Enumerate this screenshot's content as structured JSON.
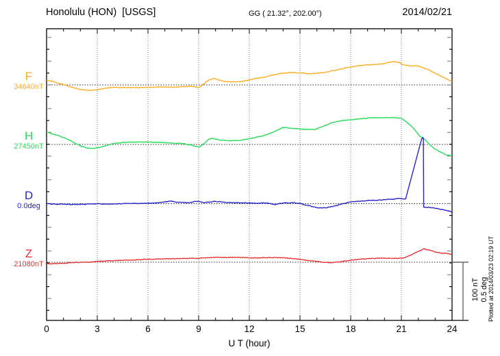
{
  "header": {
    "title": "Honolulu (HON)  [USGS]",
    "coordinates": "GG ( 21.32°, 202.00°)",
    "date": "2014/02/21"
  },
  "x_axis": {
    "label": "U T (hour)",
    "tick_labels": [
      "0",
      "3",
      "6",
      "9",
      "12",
      "15",
      "18",
      "21",
      "24"
    ],
    "minor_tick_hours": 1,
    "range_hours": [
      0,
      24
    ]
  },
  "scale_bar": {
    "labels": [
      "100 nT",
      "0.5 deg"
    ]
  },
  "footer_note": "Plotted at 2014/03/23 02:19 UT",
  "chart_data": {
    "type": "line",
    "title": "Honolulu (HON) [USGS] magnetogram for 2014/02/21",
    "xlabel": "U T (hour)",
    "x_range": [
      0,
      24
    ],
    "grid": "dotted vertical gridlines every 3 hours; dotted horizontal baseline per channel",
    "legend_position": "left margin channel labels",
    "y_scale": {
      "nT_per_division": 100,
      "deg_per_division": 0.5
    },
    "series": [
      {
        "name": "F",
        "baseline_label": "34640nT",
        "baseline_value": 34640,
        "unit": "nT",
        "color": "#ffaa1e",
        "points": [
          [
            0,
            8.1
          ],
          [
            0.3,
            6.5
          ],
          [
            0.6,
            3.5
          ],
          [
            1,
            0.6
          ],
          [
            1.5,
            -4.0
          ],
          [
            2,
            -7.5
          ],
          [
            2.4,
            -9.0
          ],
          [
            2.8,
            -8.7
          ],
          [
            3.2,
            -7.0
          ],
          [
            3.6,
            -5.2
          ],
          [
            4,
            -4.0
          ],
          [
            4.5,
            -4.3
          ],
          [
            5,
            -4.6
          ],
          [
            5.5,
            -4.6
          ],
          [
            6,
            -4.0
          ],
          [
            6.5,
            -3.5
          ],
          [
            7,
            -3.5
          ],
          [
            7.5,
            -4.0
          ],
          [
            8,
            -2.9
          ],
          [
            8.5,
            -2.3
          ],
          [
            9,
            -4.4
          ],
          [
            9.3,
            1.5
          ],
          [
            9.6,
            8.1
          ],
          [
            9.9,
            11.2
          ],
          [
            10.2,
            8.1
          ],
          [
            10.5,
            5.8
          ],
          [
            11,
            5.2
          ],
          [
            11.5,
            5.2
          ],
          [
            12,
            8.7
          ],
          [
            12.5,
            11.5
          ],
          [
            13,
            13.8
          ],
          [
            13.5,
            17.3
          ],
          [
            14,
            19.6
          ],
          [
            14.5,
            20.8
          ],
          [
            15,
            20.2
          ],
          [
            15.5,
            19.0
          ],
          [
            16,
            19.6
          ],
          [
            16.5,
            21.3
          ],
          [
            17,
            24.2
          ],
          [
            17.5,
            27.1
          ],
          [
            18,
            30.6
          ],
          [
            18.5,
            32.3
          ],
          [
            19,
            34.0
          ],
          [
            19.5,
            34.5
          ],
          [
            20,
            35.8
          ],
          [
            20.5,
            39.2
          ],
          [
            20.9,
            38.0
          ],
          [
            21.05,
            34.2
          ],
          [
            21.5,
            32.3
          ],
          [
            22,
            31.7
          ],
          [
            22.3,
            28.8
          ],
          [
            22.7,
            24.2
          ],
          [
            23,
            19.6
          ],
          [
            23.4,
            13.8
          ],
          [
            23.7,
            9.8
          ],
          [
            24,
            5.2
          ]
        ]
      },
      {
        "name": "H",
        "baseline_label": "27450nT",
        "baseline_value": 27450,
        "unit": "nT",
        "color": "#22dc55",
        "points": [
          [
            0,
            20.8
          ],
          [
            0.4,
            17.3
          ],
          [
            0.8,
            13.8
          ],
          [
            1.2,
            9.2
          ],
          [
            1.6,
            3.5
          ],
          [
            2,
            -2.3
          ],
          [
            2.4,
            -6.3
          ],
          [
            2.8,
            -6.9
          ],
          [
            3.2,
            -4.6
          ],
          [
            3.6,
            -1.2
          ],
          [
            4,
            1.7
          ],
          [
            4.5,
            3.5
          ],
          [
            5,
            4.0
          ],
          [
            5.5,
            4.0
          ],
          [
            6,
            4.0
          ],
          [
            6.5,
            3.5
          ],
          [
            7,
            2.9
          ],
          [
            7.5,
            2.3
          ],
          [
            8,
            1.7
          ],
          [
            8.5,
            -0.6
          ],
          [
            9,
            -4.6
          ],
          [
            9.3,
            1.2
          ],
          [
            9.6,
            8.9
          ],
          [
            9.8,
            10.7
          ],
          [
            10.2,
            7.5
          ],
          [
            10.5,
            6.9
          ],
          [
            11,
            6.3
          ],
          [
            11.5,
            6.9
          ],
          [
            12,
            9.8
          ],
          [
            12.5,
            12.7
          ],
          [
            13,
            16.1
          ],
          [
            13.5,
            22.0
          ],
          [
            14,
            28.8
          ],
          [
            14.5,
            27.2
          ],
          [
            15,
            26.1
          ],
          [
            15.4,
            25.4
          ],
          [
            15.8,
            25.0
          ],
          [
            16.2,
            28.8
          ],
          [
            16.6,
            33.4
          ],
          [
            17,
            37.5
          ],
          [
            17.5,
            40.4
          ],
          [
            18,
            41.5
          ],
          [
            18.5,
            43.2
          ],
          [
            19,
            44.6
          ],
          [
            19.5,
            45.0
          ],
          [
            20,
            44.8
          ],
          [
            20.5,
            45.3
          ],
          [
            21,
            44.2
          ],
          [
            21.3,
            38.0
          ],
          [
            21.7,
            28.0
          ],
          [
            22.1,
            13.5
          ],
          [
            22.4,
            8.1
          ],
          [
            22.7,
            -0.8
          ],
          [
            23,
            -8.1
          ],
          [
            23.3,
            -12.3
          ],
          [
            23.6,
            -17.3
          ],
          [
            24,
            -18.8
          ]
        ]
      },
      {
        "name": "D",
        "baseline_label": "0.0deg",
        "baseline_value": 0.0,
        "unit": "deg",
        "color": "#2323cc",
        "points": [
          [
            0,
            0.0
          ],
          [
            0.5,
            -0.004
          ],
          [
            1,
            -0.005
          ],
          [
            1.5,
            -0.007
          ],
          [
            2,
            -0.006
          ],
          [
            2.5,
            -0.003
          ],
          [
            3,
            0.0
          ],
          [
            3.5,
            -0.004
          ],
          [
            4,
            -0.003
          ],
          [
            4.5,
            0.0
          ],
          [
            5,
            0.001
          ],
          [
            5.5,
            0.002
          ],
          [
            6,
            0.004
          ],
          [
            6.5,
            0.008
          ],
          [
            7,
            0.016
          ],
          [
            7.4,
            0.022
          ],
          [
            7.8,
            0.012
          ],
          [
            8.3,
            0.01
          ],
          [
            8.9,
            0.019
          ],
          [
            9.4,
            0.01
          ],
          [
            9.9,
            0.02
          ],
          [
            10.4,
            0.013
          ],
          [
            11,
            0.009
          ],
          [
            11.5,
            0.007
          ],
          [
            12,
            0.006
          ],
          [
            12.5,
            0.004
          ],
          [
            13,
            0.006
          ],
          [
            13.5,
            -0.008
          ],
          [
            14,
            0.006
          ],
          [
            14.5,
            0.008
          ],
          [
            15,
            0.004
          ],
          [
            15.4,
            -0.013
          ],
          [
            16,
            -0.033
          ],
          [
            16.5,
            -0.036
          ],
          [
            17,
            -0.021
          ],
          [
            17.5,
            -0.001
          ],
          [
            18,
            0.013
          ],
          [
            18.5,
            0.021
          ],
          [
            19,
            0.027
          ],
          [
            19.5,
            0.028
          ],
          [
            20,
            0.035
          ],
          [
            20.5,
            0.038
          ],
          [
            21,
            0.044
          ],
          [
            21.25,
            0.04
          ],
          [
            22.2,
            0.545
          ],
          [
            22.27,
            0.559
          ],
          [
            22.3,
            0.545
          ],
          [
            22.32,
            -0.029
          ],
          [
            22.7,
            -0.033
          ],
          [
            23,
            -0.04
          ],
          [
            23.5,
            -0.052
          ],
          [
            24,
            -0.069
          ]
        ]
      },
      {
        "name": "Z",
        "baseline_label": "21080nT",
        "baseline_value": 21080,
        "unit": "nT",
        "color": "#e62e2e",
        "points": [
          [
            0,
            -2.7
          ],
          [
            0.5,
            -2.3
          ],
          [
            1,
            -1.9
          ],
          [
            1.5,
            -0.4
          ],
          [
            2,
            -0.4
          ],
          [
            2.5,
            0.0
          ],
          [
            3,
            1.2
          ],
          [
            3.5,
            2.3
          ],
          [
            4,
            2.7
          ],
          [
            4.5,
            3.1
          ],
          [
            5,
            3.5
          ],
          [
            5.5,
            4.3
          ],
          [
            6,
            5.0
          ],
          [
            6.5,
            5.4
          ],
          [
            7,
            5.8
          ],
          [
            7.5,
            6.0
          ],
          [
            8,
            6.1
          ],
          [
            8.5,
            6.3
          ],
          [
            9,
            6.5
          ],
          [
            9.5,
            7.7
          ],
          [
            10,
            8.1
          ],
          [
            10.5,
            7.7
          ],
          [
            11,
            8.1
          ],
          [
            11.5,
            7.7
          ],
          [
            12,
            7.3
          ],
          [
            12.5,
            7.5
          ],
          [
            13,
            7.3
          ],
          [
            13.5,
            8.1
          ],
          [
            14,
            7.3
          ],
          [
            14.5,
            6.5
          ],
          [
            15,
            5.0
          ],
          [
            15.5,
            3.1
          ],
          [
            16,
            1.2
          ],
          [
            16.5,
            -0.4
          ],
          [
            17,
            -0.4
          ],
          [
            17.5,
            1.2
          ],
          [
            18,
            3.5
          ],
          [
            18.5,
            5.0
          ],
          [
            19,
            6.1
          ],
          [
            19.5,
            6.6
          ],
          [
            20,
            6.9
          ],
          [
            20.5,
            6.6
          ],
          [
            21,
            6.9
          ],
          [
            21.3,
            8.9
          ],
          [
            21.7,
            13.8
          ],
          [
            22,
            18.0
          ],
          [
            22.35,
            22.7
          ],
          [
            22.6,
            20.8
          ],
          [
            23,
            16.9
          ],
          [
            23.5,
            15.0
          ],
          [
            24,
            13.5
          ]
        ]
      }
    ]
  }
}
